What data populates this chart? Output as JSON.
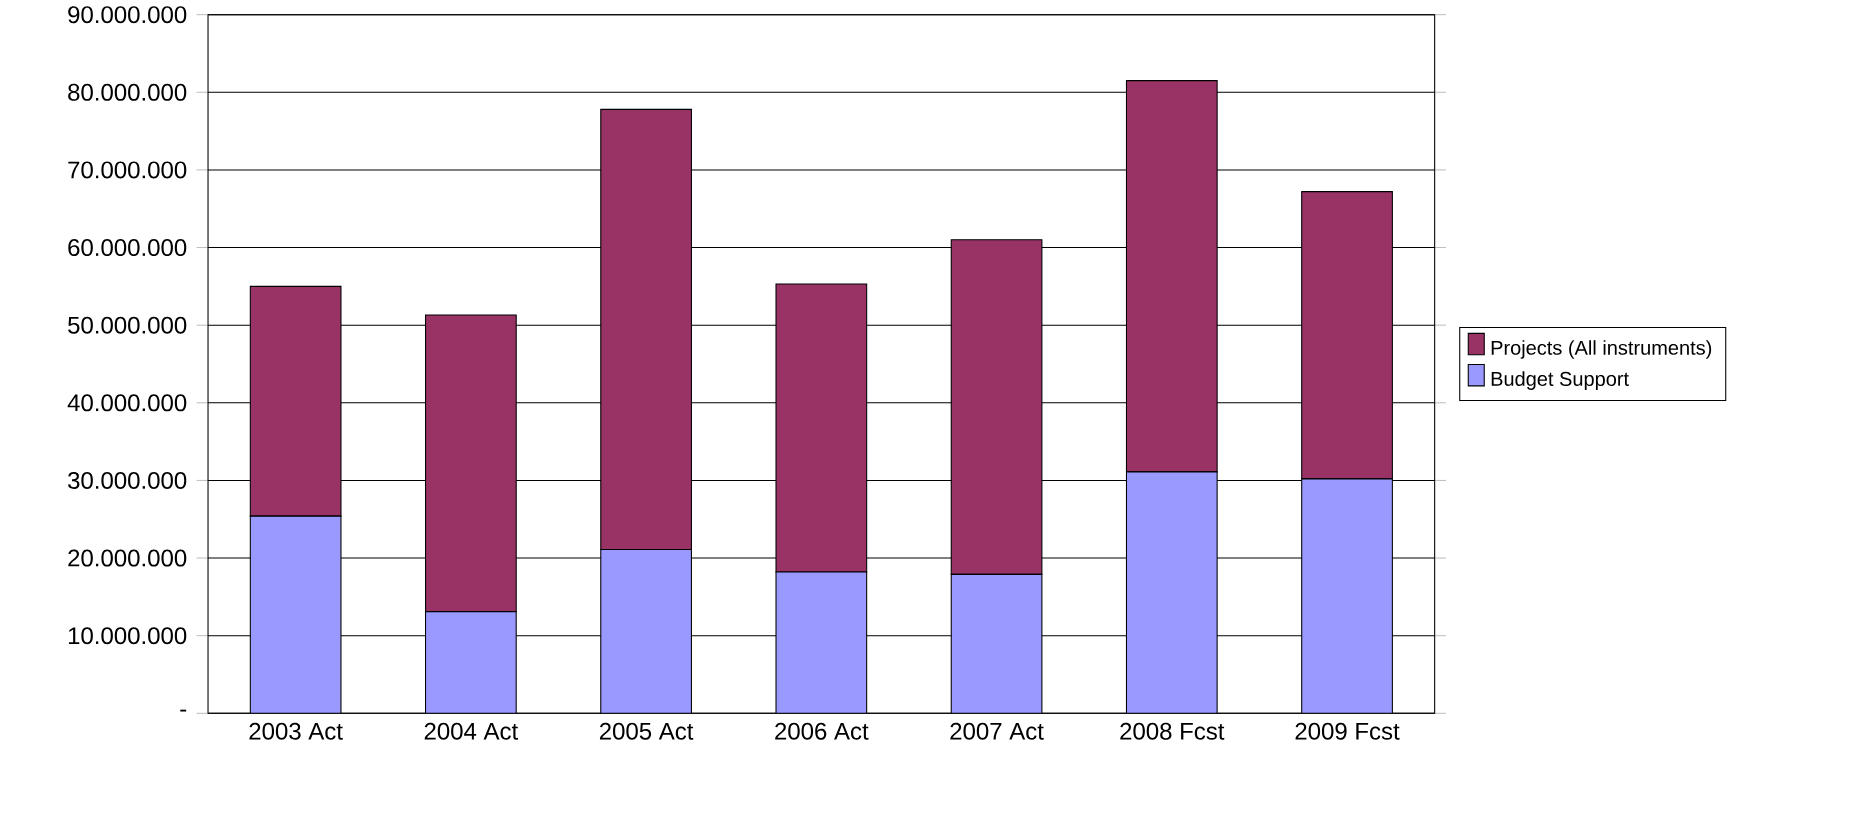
{
  "chart_data": {
    "type": "bar",
    "stacked": true,
    "categories": [
      "2003 Act",
      "2004 Act",
      "2005 Act",
      "2006 Act",
      "2007 Act",
      "2008 Fcst",
      "2009 Fcst"
    ],
    "series": [
      {
        "name": "Budget Support",
        "color": "#9999ff",
        "values": [
          25400000,
          13100000,
          21100000,
          18200000,
          17900000,
          31100000,
          30200000
        ]
      },
      {
        "name": "Projects (All instruments)",
        "color": "#993366",
        "values": [
          29600000,
          38200000,
          56700000,
          37100000,
          43100000,
          50400000,
          37000000
        ]
      }
    ],
    "ylim": [
      0,
      90000000
    ],
    "yticks": [
      {
        "value": 0,
        "label": "-"
      },
      {
        "value": 10000000,
        "label": "10.000.000"
      },
      {
        "value": 20000000,
        "label": "20.000.000"
      },
      {
        "value": 30000000,
        "label": "30.000.000"
      },
      {
        "value": 40000000,
        "label": "40.000.000"
      },
      {
        "value": 50000000,
        "label": "50.000.000"
      },
      {
        "value": 60000000,
        "label": "60.000.000"
      },
      {
        "value": 70000000,
        "label": "70.000.000"
      },
      {
        "value": 80000000,
        "label": "80.000.000"
      },
      {
        "value": 90000000,
        "label": "90.000.000"
      }
    ],
    "grid": "y",
    "legend": "right"
  }
}
